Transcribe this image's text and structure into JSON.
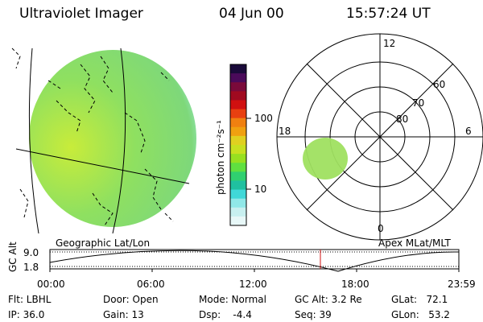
{
  "header": {
    "instrument": "Ultraviolet Imager",
    "date": "04 Jun 00",
    "time": "15:57:24 UT"
  },
  "colorbar": {
    "unit_label": "photon cm⁻²s⁻¹",
    "ticks": [
      "100",
      "10"
    ],
    "colors": [
      "#1a0a3a",
      "#4a0a5a",
      "#7a0a3a",
      "#a00a20",
      "#d01010",
      "#e84010",
      "#f08010",
      "#f0a010",
      "#e0d020",
      "#c8e020",
      "#98e020",
      "#60e040",
      "#30d070",
      "#20c0a0",
      "#40d8d8",
      "#90e8e8",
      "#c8f0f0",
      "#e8f8f8"
    ]
  },
  "geo_panel": {
    "label": "Geographic Lat/Lon",
    "fill_colors": [
      "#c8ec3a",
      "#8fe060",
      "#7ed87a",
      "#a8f0f0"
    ]
  },
  "polar_panel": {
    "label": "Apex MLat/MLT",
    "mlt_labels": {
      "top": "12",
      "left": "18",
      "right": "6",
      "bottom": "0"
    },
    "lat_labels": [
      "60",
      "70",
      "80"
    ],
    "blob_color": "#9fe060"
  },
  "orbit_plot": {
    "ylabel": "GC Alt",
    "yticks": [
      "9.0",
      "1.8"
    ],
    "xticks": [
      "00:00",
      "06:00",
      "12:00",
      "18:00",
      "23:59"
    ],
    "marker_color": "#d01010"
  },
  "footer": {
    "flt": "Flt: LBHL",
    "ip": "IP: 36.0",
    "door": "Door: Open",
    "gain": "Gain: 13",
    "mode": "Mode: Normal",
    "dsp": "Dsp:    -4.4",
    "gc_alt": "GC Alt: 3.2 Re",
    "seq": "Seq: 39",
    "glat": "GLat:   72.1",
    "glon": "GLon:   53.2"
  }
}
